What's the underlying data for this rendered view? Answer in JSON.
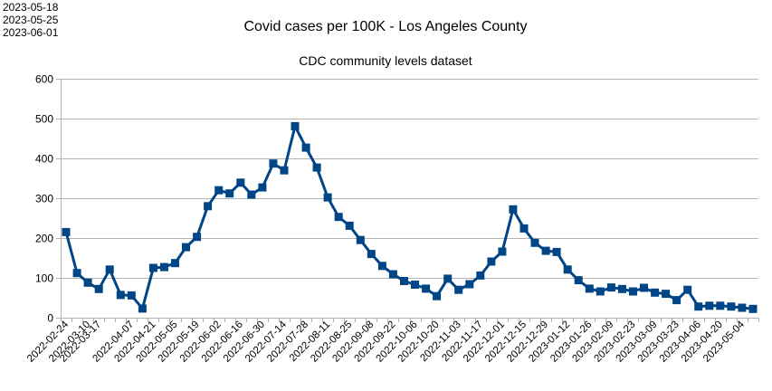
{
  "corner_dates": [
    "2023-05-18",
    "2023-05-25",
    "2023-06-01"
  ],
  "colors": {
    "series": "#004586",
    "grid": "#b3b3b3",
    "axis": "#b3b3b3",
    "text": "#000000",
    "background": "#ffffff"
  },
  "chart_data": {
    "type": "line",
    "title": "Covid cases per 100K - Los Angeles County",
    "subtitle": "CDC community levels dataset",
    "xlabel": "",
    "ylabel": "",
    "ylim": [
      0,
      600
    ],
    "yticks": [
      0,
      100,
      200,
      300,
      400,
      500,
      600
    ],
    "grid": true,
    "legend": "none",
    "marker": "square",
    "x": [
      "2022-02-24",
      "2022-03-03",
      "2022-03-10",
      "2022-03-17",
      "2022-03-24",
      "2022-03-31",
      "2022-04-07",
      "2022-04-14",
      "2022-04-21",
      "2022-04-28",
      "2022-05-05",
      "2022-05-12",
      "2022-05-19",
      "2022-05-26",
      "2022-06-02",
      "2022-06-09",
      "2022-06-16",
      "2022-06-23",
      "2022-06-30",
      "2022-07-07",
      "2022-07-14",
      "2022-07-21",
      "2022-07-28",
      "2022-08-04",
      "2022-08-11",
      "2022-08-18",
      "2022-08-25",
      "2022-09-01",
      "2022-09-08",
      "2022-09-15",
      "2022-09-22",
      "2022-09-29",
      "2022-10-06",
      "2022-10-13",
      "2022-10-20",
      "2022-10-27",
      "2022-11-03",
      "2022-11-10",
      "2022-11-17",
      "2022-11-24",
      "2022-12-01",
      "2022-12-08",
      "2022-12-15",
      "2022-12-22",
      "2022-12-29",
      "2023-01-05",
      "2023-01-12",
      "2023-01-19",
      "2023-01-26",
      "2023-02-02",
      "2023-02-09",
      "2023-02-16",
      "2023-02-23",
      "2023-03-02",
      "2023-03-09",
      "2023-03-16",
      "2023-03-23",
      "2023-03-30",
      "2023-04-06",
      "2023-04-13",
      "2023-04-20",
      "2023-04-27",
      "2023-05-04",
      "2023-05-11"
    ],
    "xtick_labels": [
      "2022-02-24",
      "2022-03-10",
      "2022-03-17",
      "2022-04-07",
      "2022-04-21",
      "2022-05-05",
      "2022-05-19",
      "2022-06-02",
      "2022-06-16",
      "2022-06-30",
      "2022-07-14",
      "2022-07-28",
      "2022-08-11",
      "2022-08-25",
      "2022-09-08",
      "2022-09-22",
      "2022-10-06",
      "2022-10-20",
      "2022-11-03",
      "2022-11-17",
      "2022-12-01",
      "2022-12-15",
      "2022-12-29",
      "2023-01-12",
      "2023-01-26",
      "2023-02-09",
      "2023-02-23",
      "2023-03-09",
      "2023-03-23",
      "2023-04-06",
      "2023-04-20",
      "2023-05-04"
    ],
    "series": [
      {
        "values": [
          215,
          112,
          88,
          72,
          121,
          57,
          56,
          23,
          125,
          127,
          137,
          177,
          203,
          280,
          320,
          312,
          339,
          309,
          327,
          387,
          370,
          481,
          427,
          377,
          302,
          253,
          231,
          195,
          160,
          130,
          109,
          92,
          83,
          73,
          54,
          98,
          70,
          84,
          106,
          141,
          166,
          272,
          224,
          188,
          168,
          165,
          121,
          94,
          73,
          66,
          76,
          72,
          66,
          75,
          63,
          60,
          44,
          70,
          28,
          30,
          30,
          28,
          25,
          22
        ]
      }
    ]
  }
}
